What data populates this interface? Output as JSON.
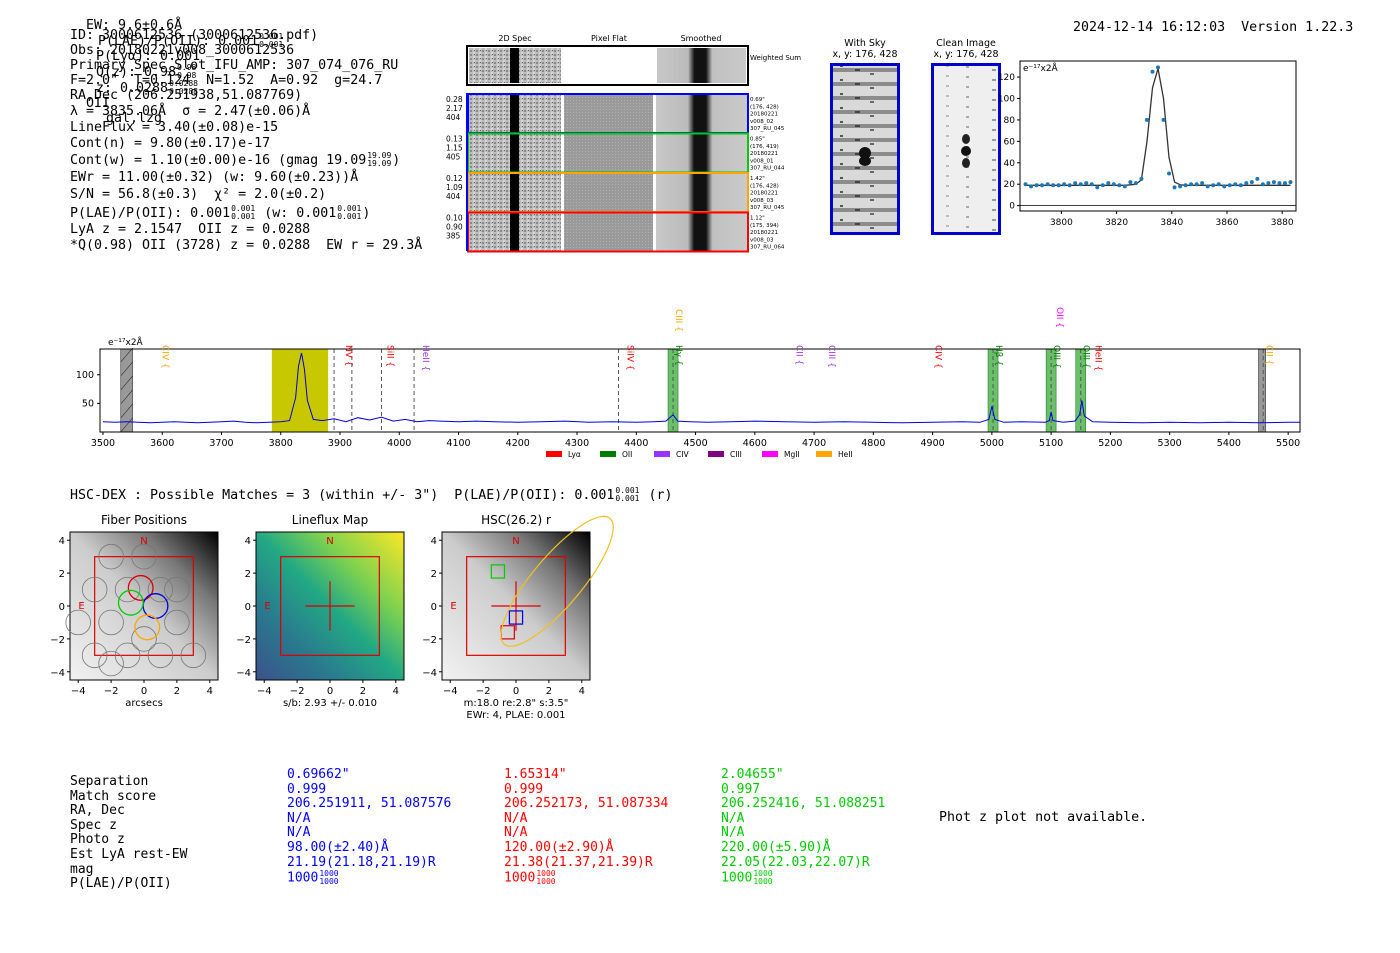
{
  "header": {
    "ew": "EW: 9.6±0.6Å",
    "plae_label": "P(LAE)/P(OII): 0.001",
    "plae_frac": [
      "0.001",
      "0.001"
    ],
    "plya": "P(Lyα): 0.001",
    "qz_label": "Q(z): 0.98",
    "qz_frac": [
      "0.98",
      "0.98"
    ],
    "z_label": "z: 0.0288",
    "z_frac": [
      "0.0288",
      "0.0288"
    ],
    "z_line": "OII",
    "classes": "gal,lzg",
    "timestamp": "2024-12-14 16:12:03",
    "version": "Version 1.22.3"
  },
  "info": {
    "id": "ID: 3000612536 (3000612536.pdf)",
    "obs": "Obs: 20180221v008_3000612536",
    "primary": "Primary Spec_Slot_IFU_AMP: 307_074_076_RU",
    "params": "F=2.0\"  T=0.124  N=1.52  A=0.92  g=24.7",
    "radec": "RA,Dec (206.251938,51.087769)",
    "lambda": "λ = 3835.06Å  σ = 2.47(±0.06)Å",
    "lineflux": "LineFlux = 3.40(±0.08)e-15",
    "contn": "Cont(n) = 9.80(±0.17)e-17",
    "contw": "Cont(w) = 1.10(±0.00)e-16 (gmag 19.09",
    "contw_frac": [
      "19.09",
      "19.09"
    ],
    "ewr": "EWr = 11.00(±0.32) (w: 9.60(±0.23))Å",
    "sn": "S/N = 56.8(±0.3)  χ² = 2.0(±0.2)",
    "plae": "P(LAE)/P(OII): 0.001",
    "plae_frac": [
      "0.001",
      "0.001"
    ],
    "plae_w": "(w: 0.001",
    "plae_w_frac": [
      "0.001",
      "0.001"
    ],
    "lya": "LyA z = 2.1547  OII z = 0.0288",
    "q": "*Q(0.98) OII (3728) z = 0.0288  EW r = 29.3Å"
  },
  "cutouts": {
    "col_titles": [
      "2D Spec",
      "Pixel Flat",
      "Smoothed"
    ],
    "weighted_sum": "Weighted Sum",
    "rows": [
      {
        "left": [
          "0.28",
          "2.17",
          "404"
        ],
        "right": [
          "0.69\"",
          "(176, 428)",
          "20180221",
          "v008_02",
          "307_RU_045"
        ],
        "color": "#0000ff"
      },
      {
        "left": [
          "0.13",
          "1.15",
          "405"
        ],
        "right": [
          "0.85\"",
          "(176, 419)",
          "20180221",
          "v008_01",
          "307_RU_044"
        ],
        "color": "#00cc00"
      },
      {
        "left": [
          "0.12",
          "1.09",
          "404"
        ],
        "right": [
          "1.42\"",
          "(176, 428)",
          "20180221",
          "v008_03",
          "307_RU_045"
        ],
        "color": "#ffa500"
      },
      {
        "left": [
          "0.10",
          "0.90",
          "385"
        ],
        "right": [
          "1.12\"",
          "(175, 394)",
          "20180221",
          "v008_03",
          "307_RU_064"
        ],
        "color": "#ff0000"
      }
    ],
    "with_sky_title": "With Sky",
    "with_sky_xy": "x, y: 176, 428",
    "clean_title": "Clean Image",
    "clean_xy": "x, y: 176, 428"
  },
  "chart_data": [
    {
      "type": "scatter",
      "unit_label": "e⁻¹⁷x2Å",
      "xlim": [
        3785,
        3885
      ],
      "ylim": [
        -5,
        135
      ],
      "xticks": [
        "3800",
        "3820",
        "3840",
        "3860",
        "3880"
      ],
      "yticks": [
        "0",
        "20",
        "40",
        "60",
        "80",
        "100",
        "120"
      ],
      "x": [
        3787,
        3789,
        3791,
        3793,
        3795,
        3797,
        3799,
        3801,
        3803,
        3805,
        3807,
        3809,
        3811,
        3813,
        3815,
        3817,
        3819,
        3821,
        3823,
        3825,
        3827,
        3829,
        3831,
        3833,
        3835,
        3837,
        3839,
        3841,
        3843,
        3845,
        3847,
        3849,
        3851,
        3853,
        3855,
        3857,
        3859,
        3861,
        3863,
        3865,
        3867,
        3869,
        3871,
        3873,
        3875,
        3877,
        3879,
        3881,
        3883
      ],
      "y": [
        20,
        18,
        19,
        19,
        20,
        19,
        19,
        20,
        19,
        21,
        20,
        21,
        20,
        17,
        19,
        21,
        20,
        19,
        18,
        22,
        21,
        25,
        80,
        125,
        129,
        80,
        30,
        17,
        18,
        19,
        20,
        20,
        21,
        18,
        19,
        20,
        18,
        19,
        20,
        19,
        21,
        22,
        25,
        20,
        21,
        22,
        21,
        21,
        22
      ],
      "model_y": [
        19,
        19,
        19,
        19,
        19,
        19,
        19,
        19,
        19,
        19,
        19,
        19,
        19,
        19,
        19,
        19,
        19,
        19,
        19,
        19.5,
        20,
        24,
        60,
        110,
        128,
        100,
        45,
        22,
        19.5,
        19,
        19,
        19,
        19,
        19,
        19,
        19,
        19,
        19,
        19,
        19,
        19,
        19,
        19,
        19,
        19,
        19,
        19,
        19,
        19
      ]
    },
    {
      "type": "line",
      "unit_label": "e⁻¹⁷x2Å",
      "xlim": [
        3495,
        5520
      ],
      "ylim": [
        0,
        145
      ],
      "xticks": [
        "3500",
        "3600",
        "3700",
        "3800",
        "3900",
        "4000",
        "4100",
        "4200",
        "4300",
        "4400",
        "4500",
        "4600",
        "4700",
        "4800",
        "4900",
        "5000",
        "5100",
        "5200",
        "5300",
        "5400",
        "5500"
      ],
      "yticks": [
        "50",
        "100"
      ],
      "x": [
        3500,
        3520,
        3540,
        3560,
        3580,
        3600,
        3620,
        3640,
        3660,
        3680,
        3700,
        3720,
        3740,
        3760,
        3780,
        3800,
        3815,
        3825,
        3830,
        3835,
        3840,
        3845,
        3855,
        3870,
        3890,
        3910,
        3930,
        3950,
        3970,
        3990,
        4010,
        4030,
        4050,
        4070,
        4100,
        4130,
        4160,
        4200,
        4240,
        4280,
        4320,
        4360,
        4400,
        4430,
        4450,
        4462,
        4470,
        4490,
        4520,
        4560,
        4600,
        4650,
        4700,
        4750,
        4800,
        4850,
        4900,
        4950,
        4980,
        4995,
        5000,
        5005,
        5020,
        5050,
        5090,
        5097,
        5100,
        5103,
        5120,
        5140,
        5148,
        5152,
        5156,
        5170,
        5200,
        5250,
        5300,
        5350,
        5400,
        5450,
        5500,
        5520
      ],
      "y": [
        18,
        17,
        18,
        17,
        16,
        17,
        18,
        17,
        16,
        17,
        18,
        19,
        17,
        16,
        17,
        18,
        20,
        60,
        115,
        138,
        110,
        55,
        22,
        20,
        23,
        18,
        25,
        21,
        26,
        19,
        22,
        18,
        20,
        19,
        18,
        19,
        18,
        17,
        18,
        19,
        17,
        18,
        17,
        18,
        19,
        30,
        19,
        18,
        17,
        18,
        19,
        18,
        17,
        18,
        17,
        16,
        17,
        18,
        17,
        22,
        45,
        22,
        17,
        18,
        17,
        20,
        35,
        20,
        17,
        19,
        30,
        55,
        28,
        18,
        17,
        16,
        17,
        16,
        17,
        16,
        17,
        17
      ],
      "legend": [
        "Lyα",
        "OII",
        "CIV",
        "CIII",
        "MgII",
        "HeII"
      ],
      "legend_colors": [
        "#ff0000",
        "#008000",
        "#9933ff",
        "#800080",
        "#ff00ff",
        "#ffa500"
      ],
      "lines": [
        {
          "label": "CIV",
          "x": 3595,
          "color": "#ffa500"
        },
        {
          "label": "NV",
          "x": 3905,
          "color": "#ff0000"
        },
        {
          "label": "SiII",
          "x": 3975,
          "color": "#ff0000"
        },
        {
          "label": "HeII",
          "x": 4035,
          "color": "#9933ff"
        },
        {
          "label": "SiIV",
          "x": 4380,
          "color": "#ff0000"
        },
        {
          "label": "Hγ",
          "x": 4462,
          "color": "#008000"
        },
        {
          "label": "CIII",
          "x": 4462,
          "color": "#ffa500"
        },
        {
          "label": "CII",
          "x": 4665,
          "color": "#9933ff"
        },
        {
          "label": "CIII",
          "x": 4720,
          "color": "#9933ff"
        },
        {
          "label": "CIV",
          "x": 4900,
          "color": "#ff0000"
        },
        {
          "label": "Hβ",
          "x": 5002,
          "color": "#008000"
        },
        {
          "label": "OIII",
          "x": 5100,
          "color": "#008000"
        },
        {
          "label": "OII",
          "x": 5105,
          "color": "#ff00ff"
        },
        {
          "label": "OIII",
          "x": 5150,
          "color": "#008000"
        },
        {
          "label": "HeII",
          "x": 5170,
          "color": "#ff0000"
        },
        {
          "label": "CII",
          "x": 5458,
          "color": "#ffa500"
        }
      ]
    }
  ],
  "hsc": {
    "title": "HSC-DEX : Possible Matches = 3 (within +/- 3\")  P(LAE)/P(OII): 0.001",
    "frac": [
      "0.001",
      "0.001"
    ],
    "band": "(r)",
    "panels": [
      {
        "title": "Fiber Positions",
        "xlabel": "arcsecs"
      },
      {
        "title": "Lineflux Map",
        "xlabel": "s/b: 2.93 +/- 0.010"
      },
      {
        "title": "HSC(26.2) r",
        "xlabel": "m:18.0  re:2.8\"  s:3.5\"",
        "xlabel2": "EWr: 4, PLAE: 0.001"
      }
    ],
    "ticks": [
      "−4",
      "−2",
      "0",
      "2",
      "4"
    ],
    "n_label": "N",
    "e_label": "E"
  },
  "table": {
    "labels": [
      "Separation",
      "Match score",
      "RA, Dec",
      "Spec z",
      "Photo z",
      "Est LyA rest-EW",
      "mag",
      "P(LAE)/P(OII)"
    ],
    "cols": [
      {
        "color": "#0000ff",
        "vals": [
          "0.69662\"",
          "0.999",
          "206.251911, 51.087576",
          "N/A",
          "N/A",
          "98.00(±2.40)Å",
          "21.19(21.18,21.19)R",
          "1000"
        ],
        "frac": [
          "1000",
          "1000"
        ]
      },
      {
        "color": "#ff0000",
        "vals": [
          "1.65314\"",
          "0.999",
          "206.252173, 51.087334",
          "N/A",
          "N/A",
          "120.00(±2.90)Å",
          "21.38(21.37,21.39)R",
          "1000"
        ],
        "frac": [
          "1000",
          "1000"
        ]
      },
      {
        "color": "#00cc00",
        "vals": [
          "2.04655\"",
          "0.997",
          "206.252416, 51.088251",
          "N/A",
          "N/A",
          "220.00(±5.90)Å",
          "22.05(22.03,22.07)R",
          "1000"
        ],
        "frac": [
          "1000",
          "1000"
        ]
      }
    ],
    "photz": "Phot z plot not available."
  }
}
